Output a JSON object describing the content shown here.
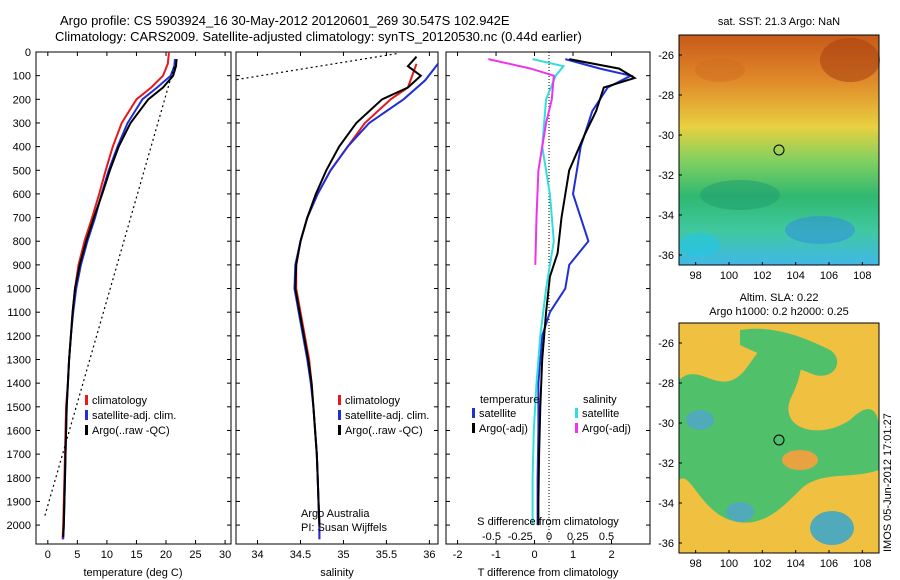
{
  "header": {
    "line1": "Argo profile: CS 5903924_16 30-May-2012 20120601_269 30.547S 102.942E",
    "line2": "Climatology: CARS2009. Satellite-adjusted climatology: synTS_20120530.nc (0.44d earlier)"
  },
  "stamp": "IMOS 05-Jun-2012 17:01:27",
  "colors": {
    "climatology": "#e41a1c",
    "satellite": "#1f2fd6",
    "argo": "#000000",
    "sal_satellite": "#33dddd",
    "sal_argo": "#ee33ee"
  },
  "chart_data": [
    {
      "type": "line",
      "xlabel": "temperature (deg C)",
      "ylabel": "",
      "xlim": [
        -2,
        31
      ],
      "ylim": [
        2080,
        0
      ],
      "xticks": [
        0,
        5,
        10,
        15,
        20,
        25,
        30
      ],
      "yticks": [
        0,
        100,
        200,
        300,
        400,
        500,
        600,
        700,
        800,
        900,
        1000,
        1100,
        1200,
        1300,
        1400,
        1500,
        1600,
        1700,
        1800,
        1900,
        2000
      ],
      "legend": [
        "climatology",
        "satellite-adj. clim.",
        "Argo(..raw -QC)"
      ],
      "series": [
        {
          "name": "climatology",
          "color": "#e41a1c",
          "points": [
            [
              20.5,
              0
            ],
            [
              20.3,
              50
            ],
            [
              19.5,
              100
            ],
            [
              17.5,
              150
            ],
            [
              15,
              200
            ],
            [
              12.5,
              300
            ],
            [
              11,
              400
            ],
            [
              9.8,
              500
            ],
            [
              8.7,
              600
            ],
            [
              7.5,
              700
            ],
            [
              6.2,
              800
            ],
            [
              5.2,
              900
            ],
            [
              4.6,
              1000
            ],
            [
              4.2,
              1100
            ],
            [
              3.9,
              1200
            ],
            [
              3.6,
              1300
            ],
            [
              3.4,
              1400
            ],
            [
              3.1,
              1500
            ],
            [
              3,
              1600
            ],
            [
              2.9,
              1700
            ],
            [
              2.8,
              1800
            ],
            [
              2.7,
              1900
            ],
            [
              2.6,
              2000
            ],
            [
              2.5,
              2060
            ]
          ]
        },
        {
          "name": "satellite-adj. clim.",
          "color": "#1f2fd6",
          "points": [
            [
              21.5,
              30
            ],
            [
              21.4,
              60
            ],
            [
              20.8,
              100
            ],
            [
              18.5,
              150
            ],
            [
              16,
              200
            ],
            [
              13.5,
              300
            ],
            [
              11.8,
              400
            ],
            [
              10.3,
              500
            ],
            [
              9.1,
              600
            ],
            [
              8,
              700
            ],
            [
              6.7,
              800
            ],
            [
              5.6,
              900
            ],
            [
              4.8,
              1000
            ],
            [
              4.3,
              1100
            ],
            [
              3.9,
              1200
            ],
            [
              3.6,
              1300
            ],
            [
              3.4,
              1400
            ],
            [
              3.2,
              1500
            ],
            [
              3.1,
              1600
            ],
            [
              3,
              1700
            ],
            [
              2.9,
              1800
            ],
            [
              2.8,
              1900
            ],
            [
              2.7,
              2000
            ],
            [
              2.6,
              2060
            ]
          ]
        },
        {
          "name": "Argo(..raw -QC)",
          "color": "#000000",
          "points": [
            [
              21.8,
              30
            ],
            [
              21.7,
              60
            ],
            [
              21.2,
              100
            ],
            [
              19.5,
              150
            ],
            [
              17,
              200
            ],
            [
              14,
              300
            ],
            [
              12,
              400
            ],
            [
              10.5,
              500
            ],
            [
              9.2,
              600
            ],
            [
              7.8,
              700
            ],
            [
              6.5,
              800
            ],
            [
              5.4,
              900
            ],
            [
              4.6,
              1000
            ],
            [
              4.2,
              1100
            ],
            [
              3.9,
              1200
            ],
            [
              3.6,
              1300
            ],
            [
              3.4,
              1400
            ],
            [
              3.2,
              1500
            ],
            [
              3.1,
              1600
            ],
            [
              3,
              1700
            ],
            [
              2.9,
              1800
            ],
            [
              2.8,
              1900
            ],
            [
              2.7,
              2000
            ],
            [
              2.6,
              2050
            ]
          ]
        },
        {
          "name": "",
          "color": "#000000",
          "dash": true,
          "points": [
            [
              -0.5,
              1960
            ],
            [
              21.5,
              50
            ]
          ]
        }
      ]
    },
    {
      "type": "line",
      "xlabel": "salinity",
      "ylabel": "",
      "xlim": [
        33.75,
        36.1
      ],
      "ylim": [
        2080,
        0
      ],
      "xticks": [
        34,
        34.5,
        35,
        35.5,
        36
      ],
      "xticklabels": [
        "34",
        "34.5",
        "35",
        "35.5",
        "36"
      ],
      "legend": [
        "climatology",
        "satellite-adj. clim.",
        "Argo(..raw -QC)"
      ],
      "annotation": [
        "Argo Australia",
        "PI: Susan Wijffels"
      ],
      "series": [
        {
          "name": "climatology",
          "color": "#e41a1c",
          "points": [
            [
              35.85,
              50
            ],
            [
              35.75,
              150
            ],
            [
              35.55,
              200
            ],
            [
              35.25,
              300
            ],
            [
              35.05,
              400
            ],
            [
              34.85,
              500
            ],
            [
              34.7,
              600
            ],
            [
              34.58,
              700
            ],
            [
              34.5,
              800
            ],
            [
              34.45,
              900
            ],
            [
              34.45,
              1000
            ],
            [
              34.5,
              1100
            ],
            [
              34.55,
              1200
            ],
            [
              34.6,
              1300
            ],
            [
              34.63,
              1400
            ],
            [
              34.65,
              1500
            ],
            [
              34.67,
              1600
            ],
            [
              34.69,
              1700
            ],
            [
              34.7,
              1800
            ],
            [
              34.71,
              1900
            ],
            [
              34.72,
              2000
            ],
            [
              34.72,
              2060
            ]
          ]
        },
        {
          "name": "satellite-adj. clim.",
          "color": "#1f2fd6",
          "points": [
            [
              36.1,
              50
            ],
            [
              35.95,
              120
            ],
            [
              35.7,
              200
            ],
            [
              35.3,
              300
            ],
            [
              35.05,
              400
            ],
            [
              34.85,
              500
            ],
            [
              34.7,
              600
            ],
            [
              34.58,
              700
            ],
            [
              34.5,
              800
            ],
            [
              34.44,
              900
            ],
            [
              34.43,
              1000
            ],
            [
              34.48,
              1100
            ],
            [
              34.53,
              1200
            ],
            [
              34.58,
              1300
            ],
            [
              34.62,
              1400
            ],
            [
              34.65,
              1500
            ],
            [
              34.67,
              1600
            ],
            [
              34.69,
              1700
            ],
            [
              34.7,
              1800
            ],
            [
              34.71,
              1900
            ],
            [
              34.72,
              2000
            ],
            [
              34.72,
              2060
            ]
          ]
        },
        {
          "name": "Argo(..raw -QC)",
          "color": "#000000",
          "points": [
            [
              35.85,
              20
            ],
            [
              35.75,
              60
            ],
            [
              35.9,
              100
            ],
            [
              35.75,
              150
            ],
            [
              35.45,
              200
            ],
            [
              35.15,
              300
            ],
            [
              34.95,
              400
            ],
            [
              34.8,
              500
            ],
            [
              34.68,
              600
            ],
            [
              34.58,
              700
            ],
            [
              34.5,
              800
            ],
            [
              34.45,
              900
            ],
            [
              34.44,
              1000
            ],
            [
              34.49,
              1100
            ],
            [
              34.54,
              1200
            ],
            [
              34.59,
              1300
            ],
            [
              34.63,
              1400
            ],
            [
              34.65,
              1500
            ],
            [
              34.67,
              1600
            ],
            [
              34.69,
              1700
            ],
            [
              34.7,
              1800
            ],
            [
              34.71,
              1900
            ],
            [
              34.72,
              2000
            ]
          ]
        },
        {
          "name": "",
          "color": "#000000",
          "dash": true,
          "points": [
            [
              33.7,
              120
            ],
            [
              35.65,
              5
            ]
          ]
        }
      ]
    },
    {
      "type": "line",
      "xlabel": "T difference from climatology",
      "xlabel_top": "S difference from climatology",
      "xlim": [
        -2.3,
        3
      ],
      "ylim": [
        2080,
        0
      ],
      "xticks": [
        -2,
        -1,
        0,
        1,
        2
      ],
      "sticks": [
        -0.5,
        -0.25,
        0,
        0.25,
        0.5
      ],
      "sticklabels": [
        "-0.5",
        "-0.25",
        "0",
        "0.25",
        "0.5"
      ],
      "legend_titles": [
        "temperature",
        "salinity"
      ],
      "legend": [
        "satellite",
        "Argo(-adj)",
        "satellite",
        "Argo(-adj)"
      ],
      "series": [
        {
          "name": "satellite",
          "color": "#1f2fd6",
          "points": [
            [
              0.8,
              30
            ],
            [
              1.7,
              70
            ],
            [
              2.5,
              100
            ],
            [
              1.9,
              150
            ],
            [
              1.5,
              250
            ],
            [
              1.2,
              400
            ],
            [
              1.1,
              500
            ],
            [
              1,
              600
            ],
            [
              1.2,
              700
            ],
            [
              1.4,
              800
            ],
            [
              0.9,
              900
            ],
            [
              0.8,
              1000
            ],
            [
              0.4,
              1100
            ],
            [
              0.2,
              1200
            ],
            [
              0.1,
              1400
            ],
            [
              0.1,
              1600
            ],
            [
              0.08,
              1800
            ],
            [
              0.08,
              2000
            ]
          ]
        },
        {
          "name": "Argo(-adj)",
          "color": "#000000",
          "points": [
            [
              0.9,
              30
            ],
            [
              2.2,
              70
            ],
            [
              2.6,
              110
            ],
            [
              1.8,
              150
            ],
            [
              1.6,
              250
            ],
            [
              1.3,
              350
            ],
            [
              0.9,
              500
            ],
            [
              0.7,
              700
            ],
            [
              0.6,
              850
            ],
            [
              0.4,
              950
            ],
            [
              0.3,
              1100
            ],
            [
              0.2,
              1300
            ],
            [
              0.15,
              1500
            ],
            [
              0.12,
              1700
            ],
            [
              0.1,
              1900
            ],
            [
              0.1,
              2000
            ]
          ]
        },
        {
          "name": "satellite",
          "color": "#33dddd",
          "points": [
            [
              -0.05,
              30
            ],
            [
              0.75,
              60
            ],
            [
              0.55,
              100
            ],
            [
              0.3,
              200
            ],
            [
              0.2,
              400
            ],
            [
              0.4,
              600
            ],
            [
              0.5,
              800
            ],
            [
              0.3,
              1000
            ],
            [
              0.15,
              1200
            ],
            [
              0.05,
              1400
            ],
            [
              -0.02,
              1600
            ],
            [
              -0.05,
              1800
            ],
            [
              -0.05,
              2000
            ]
          ]
        },
        {
          "name": "Argo(-adj)",
          "color": "#ee33ee",
          "points": [
            [
              -1.2,
              30
            ],
            [
              -0.1,
              70
            ],
            [
              0.5,
              100
            ],
            [
              0.45,
              200
            ],
            [
              0.3,
              300
            ],
            [
              0.1,
              500
            ],
            [
              0.05,
              700
            ],
            [
              0.02,
              900
            ]
          ]
        }
      ]
    },
    {
      "type": "heatmap",
      "title": "sat. SST: 21.3  Argo: NaN",
      "xticks": [
        98,
        100,
        102,
        104,
        106,
        108
      ],
      "yticks": [
        -26,
        -28,
        -30,
        -32,
        -34,
        -36
      ],
      "xlim": [
        97,
        109
      ],
      "ylim": [
        -36.5,
        -25
      ]
    },
    {
      "type": "heatmap",
      "title": "Altim. SLA: 0.22",
      "subtitle": "Argo h1000: 0.2  h2000: 0.25",
      "xticks": [
        98,
        100,
        102,
        104,
        106,
        108
      ],
      "yticks": [
        -26,
        -28,
        -30,
        -32,
        -34,
        -36
      ],
      "xlim": [
        97,
        109
      ],
      "ylim": [
        -36.5,
        -25
      ]
    }
  ]
}
